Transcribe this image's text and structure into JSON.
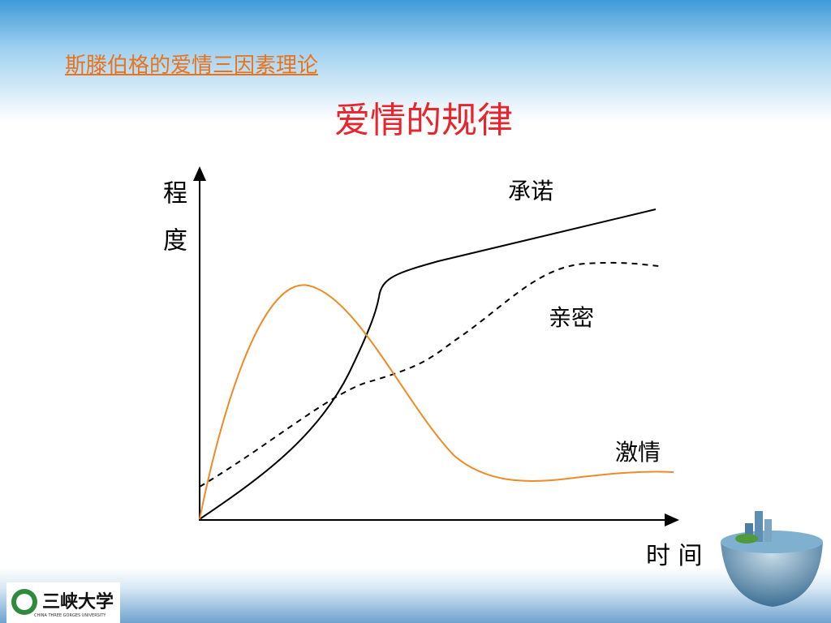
{
  "header": {
    "subtitle": "斯滕伯格的爱情三因素理论",
    "title": "爱情的规律"
  },
  "diagram": {
    "y_axis_label": "程度",
    "x_axis_label": "时 间",
    "curves": [
      {
        "label": "承诺"
      },
      {
        "label": "亲密"
      },
      {
        "label": "激情"
      }
    ]
  },
  "footer": {
    "logo_name": "三峡大学",
    "logo_english": "CHINA THREE GORGES UNIVERSITY"
  }
}
